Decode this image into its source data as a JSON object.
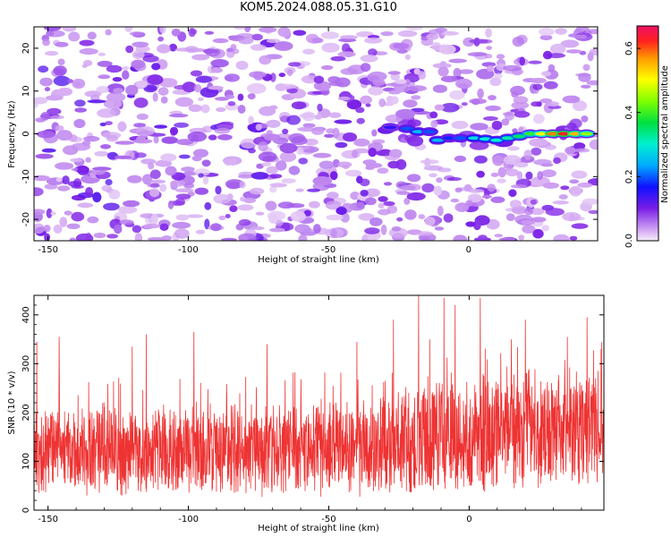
{
  "title": "KOM5.2024.088.05.31.G10",
  "colors": {
    "spectro_low": "#ead9f7",
    "spectro_mid": "#7a1ee6",
    "snr_line": "#ee3333"
  },
  "chart_data": [
    {
      "type": "heatmap",
      "name": "spectrogram",
      "xlabel": "Height of straight line (km)",
      "ylabel": "Frequency (Hz)",
      "xlim": [
        -155,
        46
      ],
      "ylim": [
        -25,
        25
      ],
      "xticks": [
        -150,
        -100,
        -50,
        0
      ],
      "yticks": [
        -20,
        -10,
        0,
        10,
        20
      ],
      "colorbar": {
        "label": "Normalized spectral amplitude",
        "range": [
          0,
          0.67
        ],
        "ticks": [
          "0.0",
          "0.2",
          "0.4",
          "0.6"
        ],
        "tick_values": [
          0.0,
          0.2,
          0.4,
          0.6
        ]
      },
      "ridge": [
        {
          "x": -28,
          "y": 1.5,
          "v": 0.15
        },
        {
          "x": -22,
          "y": 1.2,
          "v": 0.2
        },
        {
          "x": -18,
          "y": 0.5,
          "v": 0.25
        },
        {
          "x": -14,
          "y": 0.5,
          "v": 0.2
        },
        {
          "x": -11,
          "y": -1.5,
          "v": 0.25
        },
        {
          "x": -7,
          "y": -1.0,
          "v": 0.18
        },
        {
          "x": -3,
          "y": -1.0,
          "v": 0.2
        },
        {
          "x": 2,
          "y": -1.0,
          "v": 0.28
        },
        {
          "x": 6,
          "y": -1.2,
          "v": 0.3
        },
        {
          "x": 10,
          "y": -1.5,
          "v": 0.3
        },
        {
          "x": 14,
          "y": -1.0,
          "v": 0.32
        },
        {
          "x": 18,
          "y": -0.6,
          "v": 0.35
        },
        {
          "x": 22,
          "y": 0.0,
          "v": 0.4
        },
        {
          "x": 26,
          "y": 0.0,
          "v": 0.5
        },
        {
          "x": 30,
          "y": 0.0,
          "v": 0.58
        },
        {
          "x": 34,
          "y": 0.0,
          "v": 0.62
        },
        {
          "x": 38,
          "y": 0.0,
          "v": 0.55
        },
        {
          "x": 42,
          "y": 0.0,
          "v": 0.45
        }
      ]
    },
    {
      "type": "line",
      "name": "snr",
      "xlabel": "Height of straight line (km)",
      "ylabel": "SNR (10 * v/v)",
      "xlim": [
        -155,
        48
      ],
      "ylim": [
        0,
        440
      ],
      "xticks": [
        -150,
        -100,
        -50,
        0
      ],
      "yticks": [
        0,
        100,
        200,
        300,
        400
      ],
      "series": [
        {
          "color": "#ee3333",
          "trend": [
            {
              "x": -155,
              "mean": 120,
              "spread": 75
            },
            {
              "x": -100,
              "mean": 120,
              "spread": 75
            },
            {
              "x": -50,
              "mean": 125,
              "spread": 80
            },
            {
              "x": -20,
              "mean": 140,
              "spread": 95
            },
            {
              "x": 0,
              "mean": 150,
              "spread": 100
            },
            {
              "x": 48,
              "mean": 165,
              "spread": 100
            }
          ],
          "peaks": [
            {
              "x": -154,
              "y": 345
            },
            {
              "x": -146,
              "y": 355
            },
            {
              "x": -120,
              "y": 335
            },
            {
              "x": -115,
              "y": 360
            },
            {
              "x": -98,
              "y": 365
            },
            {
              "x": -72,
              "y": 340
            },
            {
              "x": -40,
              "y": 345
            },
            {
              "x": -27,
              "y": 390
            },
            {
              "x": -18,
              "y": 440
            },
            {
              "x": -14,
              "y": 350
            },
            {
              "x": -9,
              "y": 435
            },
            {
              "x": -5,
              "y": 420
            },
            {
              "x": 4,
              "y": 435
            },
            {
              "x": 15,
              "y": 350
            },
            {
              "x": 20,
              "y": 390
            },
            {
              "x": 35,
              "y": 355
            },
            {
              "x": 42,
              "y": 395
            },
            {
              "x": 47,
              "y": 330
            }
          ],
          "samples": 2200
        }
      ]
    }
  ]
}
